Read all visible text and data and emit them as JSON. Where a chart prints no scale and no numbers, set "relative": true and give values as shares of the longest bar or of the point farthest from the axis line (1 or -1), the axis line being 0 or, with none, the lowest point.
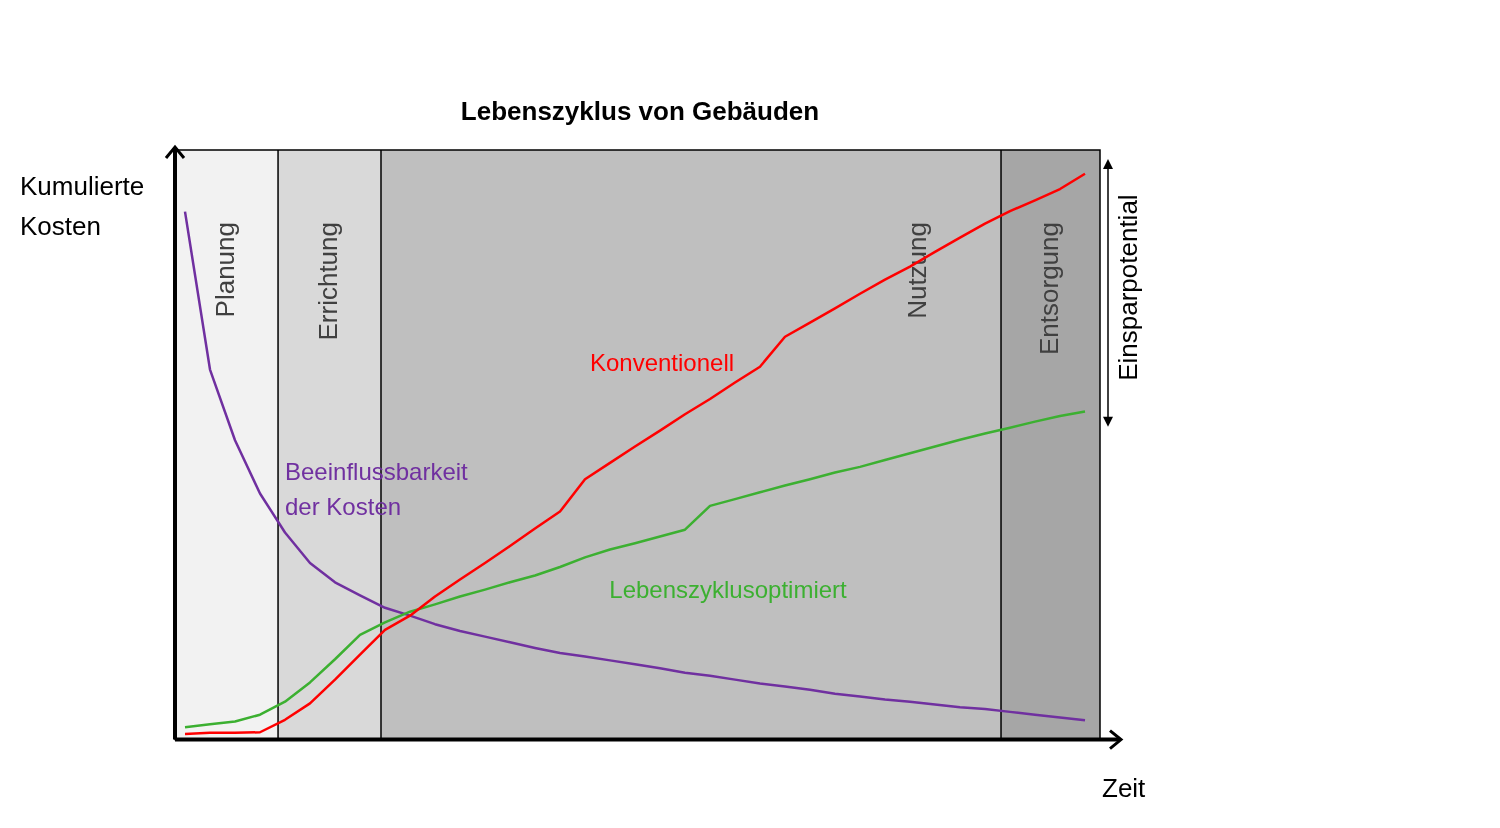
{
  "chart_data": {
    "type": "line",
    "title": "Lebenszyklus von Gebäuden",
    "xlabel": "Zeit",
    "ylabel": "Kumulierte Kosten",
    "relative": true,
    "grid": false,
    "legend": false,
    "marker": "none",
    "line_style": "solid",
    "categories": [
      null,
      null,
      null,
      null,
      null,
      null,
      null,
      null,
      null,
      null,
      null,
      null,
      null,
      null,
      null,
      null,
      null,
      null,
      null,
      null,
      null,
      null,
      null,
      null,
      null,
      null,
      null,
      null,
      null,
      null,
      null,
      null,
      null,
      null,
      null,
      null,
      null
    ],
    "series": [
      {
        "name": "Konventionell",
        "color": "#ff0000",
        "values": [
          0.01,
          0.012,
          0.012,
          0.013,
          0.035,
          0.064,
          0.106,
          0.15,
          0.194,
          0.219,
          0.253,
          0.283,
          0.312,
          0.342,
          0.373,
          0.403,
          0.46,
          0.489,
          0.518,
          0.546,
          0.575,
          0.602,
          0.631,
          0.659,
          0.712,
          0.737,
          0.762,
          0.788,
          0.813,
          0.836,
          0.862,
          0.887,
          0.912,
          0.934,
          0.953,
          0.973,
          1
        ]
      },
      {
        "name": "Lebenszyklusoptimiert",
        "color": "#3cb031",
        "values": [
          0.022,
          0.027,
          0.032,
          0.044,
          0.067,
          0.101,
          0.142,
          0.185,
          0.207,
          0.226,
          0.239,
          0.253,
          0.265,
          0.278,
          0.29,
          0.305,
          0.322,
          0.336,
          0.347,
          0.359,
          0.371,
          0.413,
          0.425,
          0.437,
          0.449,
          0.46,
          0.472,
          0.482,
          0.494,
          0.506,
          0.518,
          0.53,
          0.541,
          0.551,
          0.562,
          0.572,
          0.58
        ]
      },
      {
        "name": "Beeinflussbarkeit der Kosten",
        "color": "#7030a0",
        "values": [
          0.933,
          0.654,
          0.529,
          0.435,
          0.366,
          0.312,
          0.278,
          0.255,
          0.233,
          0.219,
          0.204,
          0.192,
          0.182,
          0.172,
          0.162,
          0.153,
          0.147,
          0.14,
          0.133,
          0.126,
          0.118,
          0.113,
          0.106,
          0.099,
          0.094,
          0.088,
          0.081,
          0.076,
          0.071,
          0.067,
          0.062,
          0.057,
          0.054,
          0.049,
          0.044,
          0.039,
          0.034
        ]
      }
    ],
    "annotations": [
      "Planung",
      "Errichtung",
      "Nutzung",
      "Entsorgung",
      "Einsparpotential"
    ]
  }
}
